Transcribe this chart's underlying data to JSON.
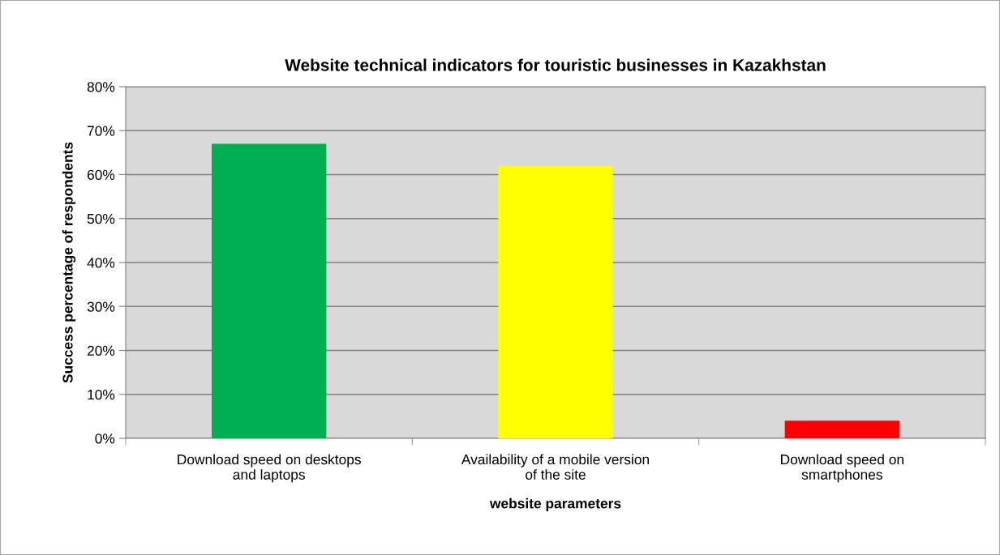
{
  "chart_data": {
    "type": "bar",
    "title": "Website technical indicators for touristic businesses in Kazakhstan",
    "xlabel": "website parameters",
    "ylabel": "Success percentage of respondents",
    "categories": [
      "Download speed on desktops\nand laptops",
      "Availability of a mobile version\nof the site",
      "Download speed on\nsmartphones"
    ],
    "values": [
      67,
      62,
      4
    ],
    "colors": [
      "#00b050",
      "#ffff00",
      "#ff0000"
    ],
    "ylim": [
      0,
      80
    ],
    "yticks": [
      {
        "value": 0,
        "label": "0%"
      },
      {
        "value": 10,
        "label": "10%"
      },
      {
        "value": 20,
        "label": "20%"
      },
      {
        "value": 30,
        "label": "30%"
      },
      {
        "value": 40,
        "label": "40%"
      },
      {
        "value": 50,
        "label": "50%"
      },
      {
        "value": 60,
        "label": "60%"
      },
      {
        "value": 70,
        "label": "70%"
      },
      {
        "value": 80,
        "label": "80%"
      }
    ],
    "grid": "y",
    "legend": false
  }
}
